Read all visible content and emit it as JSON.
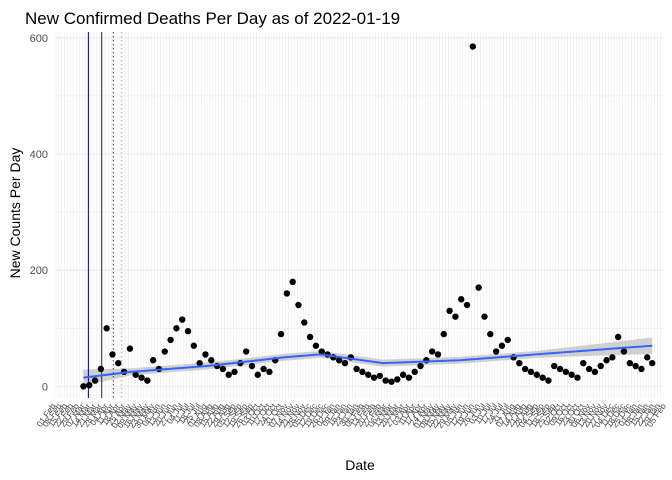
{
  "chart_data": {
    "type": "scatter",
    "title": "New Confirmed Deaths Per Day as of 2022-01-19",
    "xlabel": "Date",
    "ylabel": "New Counts Per Day",
    "x_range": [
      "2020-02-01",
      "2022-02-01"
    ],
    "ylim": [
      -20,
      610
    ],
    "y_ticks": [
      0,
      200,
      400,
      600
    ],
    "x_tick_labels": [
      "01 Feb",
      "08 Feb",
      "15 Feb",
      "22 Feb",
      "29 Feb",
      "07 Mar",
      "14 Mar",
      "21 Mar",
      "28 Mar",
      "04 Apr",
      "11 Apr",
      "18 Apr",
      "25 Apr",
      "02 May",
      "09 May",
      "16 May",
      "23 May",
      "30 May",
      "06 Jun",
      "13 Jun",
      "20 Jun",
      "27 Jun",
      "04 Jul",
      "11 Jul",
      "18 Jul",
      "25 Jul",
      "01 Aug",
      "08 Aug",
      "15 Aug",
      "22 Aug",
      "29 Aug",
      "05 Sep",
      "12 Sep",
      "19 Sep",
      "26 Sep",
      "03 Oct",
      "10 Oct",
      "17 Oct",
      "24 Oct",
      "31 Oct",
      "07 Nov",
      "14 Nov",
      "21 Nov",
      "28 Nov",
      "05 Dec",
      "12 Dec",
      "19 Dec",
      "26 Dec",
      "02 Jan",
      "09 Jan",
      "16 Jan",
      "23 Jan",
      "30 Jan",
      "06 Feb",
      "13 Feb",
      "20 Feb",
      "27 Feb",
      "06 Mar",
      "13 Mar",
      "20 Mar",
      "27 Mar",
      "03 Apr",
      "10 Apr",
      "17 Apr",
      "24 Apr",
      "01 May",
      "08 May",
      "15 May",
      "22 May",
      "29 May",
      "05 Jun",
      "12 Jun",
      "19 Jun",
      "26 Jun",
      "03 Jul",
      "10 Jul",
      "17 Jul",
      "24 Jul",
      "31 Jul",
      "07 Aug",
      "14 Aug",
      "21 Aug",
      "28 Aug",
      "04 Sep",
      "11 Sep",
      "18 Sep",
      "25 Sep",
      "02 Oct",
      "09 Oct",
      "16 Oct",
      "23 Oct",
      "30 Oct",
      "06 Nov",
      "13 Nov",
      "20 Nov",
      "27 Nov",
      "04 Dec",
      "11 Dec",
      "18 Dec",
      "25 Dec",
      "01 Jan",
      "08 Jan",
      "15 Jan",
      "22 Jan",
      "29 Jan",
      "05 Feb"
    ],
    "vertical_lines": [
      {
        "date": "2020-03-11",
        "color": "#00008b",
        "style": "solid"
      },
      {
        "date": "2020-03-27",
        "color": "#8b0000",
        "style": "solid"
      },
      {
        "date": "2020-04-10",
        "color": "#cc0000",
        "style": "dotted"
      },
      {
        "date": "2020-04-20",
        "color": "#ff9999",
        "style": "dotted"
      }
    ],
    "series": [
      {
        "x": [
          "2020-03-05",
          "2020-03-12",
          "2020-03-19",
          "2020-03-26",
          "2020-04-02",
          "2020-04-09",
          "2020-04-16",
          "2020-04-23",
          "2020-04-30",
          "2020-05-07",
          "2020-05-14",
          "2020-05-21",
          "2020-05-28",
          "2020-06-04",
          "2020-06-11",
          "2020-06-18",
          "2020-06-25",
          "2020-07-02",
          "2020-07-09",
          "2020-07-16",
          "2020-07-23",
          "2020-07-30",
          "2020-08-06",
          "2020-08-13",
          "2020-08-20",
          "2020-08-27",
          "2020-09-03",
          "2020-09-10",
          "2020-09-17",
          "2020-09-24",
          "2020-10-01",
          "2020-10-08",
          "2020-10-15",
          "2020-10-22",
          "2020-10-29",
          "2020-11-05",
          "2020-11-12",
          "2020-11-19",
          "2020-11-26",
          "2020-12-03",
          "2020-12-10",
          "2020-12-17",
          "2020-12-24",
          "2020-12-31",
          "2021-01-07",
          "2021-01-14",
          "2021-01-21",
          "2021-01-28",
          "2021-02-04",
          "2021-02-11",
          "2021-02-18",
          "2021-02-25",
          "2021-03-04",
          "2021-03-11",
          "2021-03-18",
          "2021-03-25",
          "2021-04-01",
          "2021-04-08",
          "2021-04-15",
          "2021-04-22",
          "2021-04-29",
          "2021-05-06",
          "2021-05-13",
          "2021-05-20",
          "2021-05-27",
          "2021-06-03",
          "2021-06-10",
          "2021-06-17",
          "2021-06-24",
          "2021-07-01",
          "2021-07-08",
          "2021-07-15",
          "2021-07-22",
          "2021-07-29",
          "2021-08-05",
          "2021-08-12",
          "2021-08-19",
          "2021-08-26",
          "2021-09-02",
          "2021-09-09",
          "2021-09-16",
          "2021-09-23",
          "2021-09-30",
          "2021-10-07",
          "2021-10-14",
          "2021-10-21",
          "2021-10-28",
          "2021-11-04",
          "2021-11-11",
          "2021-11-18",
          "2021-11-25",
          "2021-12-02",
          "2021-12-09",
          "2021-12-16",
          "2021-12-23",
          "2021-12-30",
          "2022-01-06",
          "2022-01-13",
          "2022-01-19"
        ],
        "y": [
          0,
          2,
          10,
          30,
          100,
          55,
          40,
          25,
          65,
          20,
          15,
          10,
          45,
          30,
          60,
          80,
          100,
          115,
          95,
          70,
          40,
          55,
          45,
          35,
          30,
          20,
          25,
          40,
          60,
          35,
          20,
          30,
          25,
          45,
          90,
          160,
          180,
          140,
          110,
          85,
          70,
          60,
          55,
          50,
          45,
          40,
          50,
          30,
          25,
          20,
          15,
          18,
          10,
          8,
          12,
          20,
          15,
          25,
          35,
          45,
          60,
          55,
          90,
          130,
          120,
          150,
          140,
          585,
          170,
          120,
          90,
          60,
          70,
          80,
          50,
          40,
          30,
          25,
          20,
          15,
          10,
          35,
          30,
          25,
          20,
          15,
          40,
          30,
          25,
          35,
          45,
          50,
          85,
          60,
          40,
          35,
          30,
          50,
          40
        ]
      }
    ],
    "trend": {
      "x": [
        "2020-03-05",
        "2020-05-01",
        "2020-08-01",
        "2020-11-01",
        "2020-12-15",
        "2021-03-01",
        "2021-06-01",
        "2021-09-01",
        "2022-01-19"
      ],
      "y": [
        15,
        25,
        35,
        50,
        55,
        40,
        45,
        55,
        70
      ]
    },
    "colors": {
      "points": "#000000",
      "trend": "#3366ff",
      "band": "#c8c8c8",
      "grid": "#ebebeb"
    }
  }
}
